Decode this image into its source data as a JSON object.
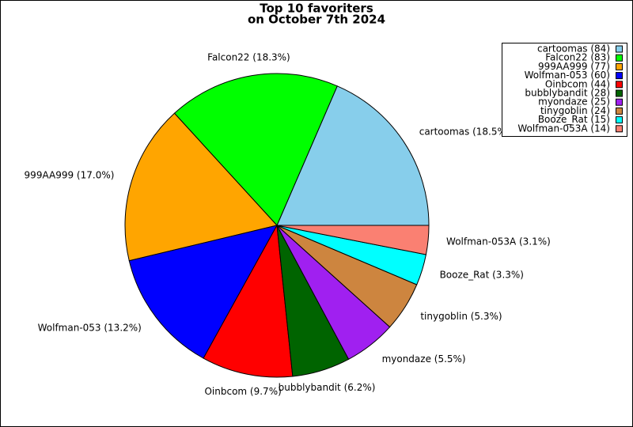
{
  "chart_data": {
    "type": "pie",
    "title": [
      "Top 10 favoriters",
      "on October 7th 2024"
    ],
    "categories": [
      "cartoomas (84)",
      "Falcon22 (83)",
      "999AA999 (77)",
      "Wolfman-053 (60)",
      "Oinbcom (44)",
      "bubblybandit (28)",
      "myondaze (25)",
      "tinygoblin (24)",
      "Booze_Rat (15)",
      "Wolfman-053A (14)"
    ],
    "values": [
      84,
      83,
      77,
      60,
      44,
      28,
      25,
      24,
      15,
      14
    ],
    "slice_labels": [
      "cartoomas (18.5%)",
      "Falcon22 (18.3%)",
      "999AA999 (17.0%)",
      "Wolfman-053 (13.2%)",
      "Oinbcom (9.7%)",
      "bubblybandit (6.2%)",
      "myondaze (5.5%)",
      "tinygoblin (5.3%)",
      "Booze_Rat (3.3%)",
      "Wolfman-053A (3.1%)"
    ],
    "colors": [
      "#87ceeb",
      "#00ff00",
      "#ffa500",
      "#0000ff",
      "#ff0000",
      "#006400",
      "#a020f0",
      "#cd853f",
      "#00ffff",
      "#fa8072"
    ],
    "legend": "upper right"
  }
}
